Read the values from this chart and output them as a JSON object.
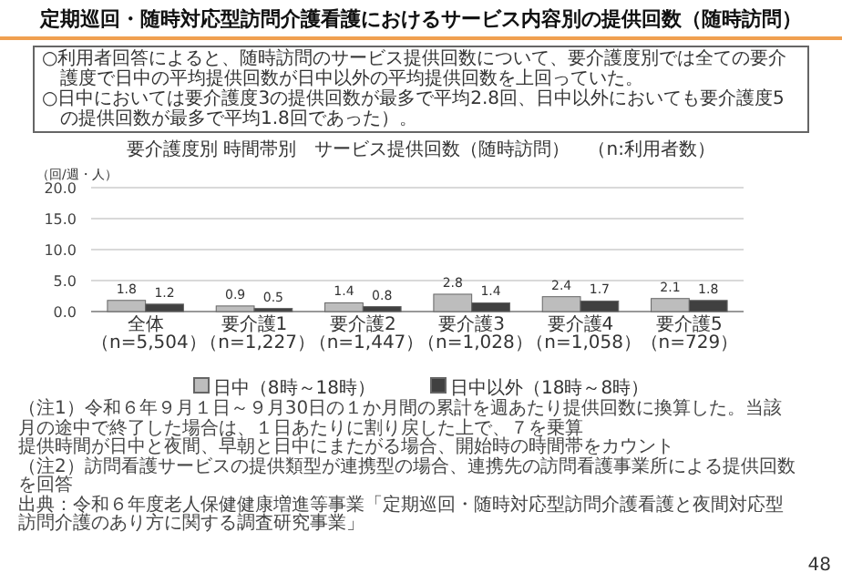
{
  "chart_data": {
    "type": "bar",
    "title": "定期巡回・随時対応型訪問介護看護におけるサービス内容別の提供回数（随時訪問）",
    "subtitle": "要介護度別 時間帯別　サービス提供回数（随時訪問）　（n:利用者数）",
    "ylabel": "（回/週・人）",
    "categories": [
      "全体（n=5,504）",
      "要介護1（n=1,227）",
      "要介護2（n=1,447）",
      "要介護3（n=1,028）",
      "要介護4（n=1,058）",
      "要介護5（n=729）"
    ],
    "series": [
      {
        "name": "日中（8時～18時）",
        "color": "#bdbdbd",
        "values": [
          1.8,
          0.9,
          1.4,
          2.8,
          2.4,
          2.1
        ]
      },
      {
        "name": "日中以外（18時～8時）",
        "color": "#404040",
        "values": [
          1.2,
          0.5,
          0.8,
          1.4,
          1.7,
          1.8
        ]
      }
    ],
    "ylim": [
      0,
      20
    ],
    "yticks": [
      {
        "value": 0,
        "label": "0.0"
      },
      {
        "value": 5,
        "label": "5.0"
      },
      {
        "value": 10,
        "label": "10.0"
      },
      {
        "value": 15,
        "label": "15.0"
      },
      {
        "value": 20,
        "label": "20.0"
      }
    ],
    "grid": "y",
    "legend": "bottom",
    "data_labels": true,
    "annotations": [
      "○利用者回答によると、随時訪問のサービス提供回数について、要介護度別では全ての要介護度で日中の平均提供回数が日中以外の平均提供回数を上回っていた。",
      "○日中においては要介護度3の提供回数が最多で平均2.8回、日中以外においても要介護度5の提供回数が最多で平均1.8回であった）。",
      "（注1）令和６年９月１日～９月30日の１か月間の累計を週あたり提供回数に換算した。当該月の途中で終了した場合は、１日あたりに割り戻した上で、７を乗算",
      "提供時間が日中と夜間、早朝と日中にまたがる場合、開始時の時間帯をカウント",
      "（注2）訪問看護サービスの提供類型が連携型の場合、連携先の訪問看護事業所による提供回数を回答",
      "出典：令和６年度老人保健健康増進等事業「定期巡回・随時対応型訪問介護看護と夜間対応型訪問介護のあり方に関する調査研究事業」",
      "48"
    ]
  }
}
